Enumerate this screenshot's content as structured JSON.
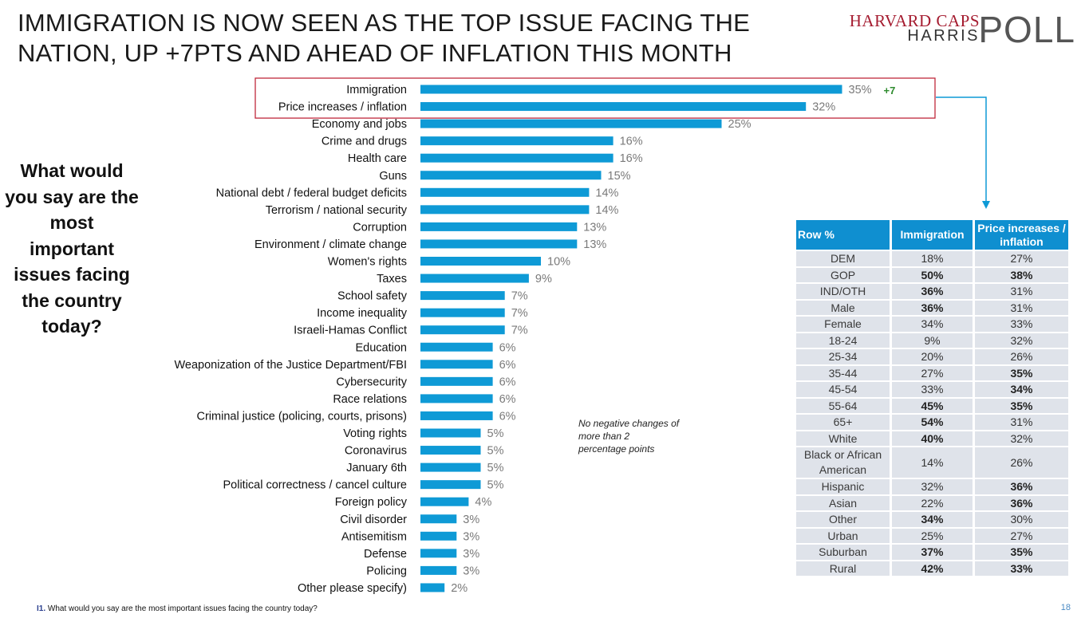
{
  "title_lines": [
    "IMMIGRATION IS NOW SEEN AS THE TOP ISSUE FACING THE",
    "NATION, UP +7PTS AND AHEAD OF INFLATION THIS MONTH"
  ],
  "logo": {
    "line1": "HARVARD CAPS",
    "line2": "HARRIS",
    "line3": "POLL",
    "line1_color": "#a51c30"
  },
  "question_lines": [
    "What would",
    "you say are the",
    "most",
    "important",
    "issues facing",
    "the country",
    "today?"
  ],
  "note_lines": [
    "No negative changes of",
    "more than 2",
    "percentage points"
  ],
  "footnote": {
    "id": "I1.",
    "text": " What would you say are the most important issues facing the country today?"
  },
  "page_number": "18",
  "colors": {
    "bar": "#0e9ad6",
    "highlight_box": "#c0283c",
    "change_text": "#2e8b2e",
    "header_bg": "#0f8fd0",
    "cell_bg": "#dfe3ea",
    "arrow": "#0e9ad6"
  },
  "chart_data": {
    "type": "bar",
    "orientation": "horizontal",
    "value_suffix": "%",
    "categories": [
      "Immigration",
      "Price increases / inflation",
      "Economy and jobs",
      "Crime and drugs",
      "Health care",
      "Guns",
      "National debt / federal budget deficits",
      "Terrorism / national security",
      "Corruption",
      "Environment / climate change",
      "Women's rights",
      "Taxes",
      "School safety",
      "Income inequality",
      "Israeli-Hamas Conflict",
      "Education",
      "Weaponization of the Justice Department/FBI",
      "Cybersecurity",
      "Race relations",
      "Criminal justice (policing, courts, prisons)",
      "Voting rights",
      "Coronavirus",
      "January 6th",
      "Political correctness / cancel culture",
      "Foreign policy",
      "Civil disorder",
      "Antisemitism",
      "Defense",
      "Policing",
      "Other please specify)"
    ],
    "values": [
      35,
      32,
      25,
      16,
      16,
      15,
      14,
      14,
      13,
      13,
      10,
      9,
      7,
      7,
      7,
      6,
      6,
      6,
      6,
      6,
      5,
      5,
      5,
      5,
      4,
      3,
      3,
      3,
      3,
      2
    ],
    "annotations": [
      {
        "category": "Immigration",
        "text": "+7"
      }
    ],
    "highlighted_categories": [
      "Immigration",
      "Price increases / inflation"
    ],
    "xlim": [
      0,
      35
    ]
  },
  "table": {
    "headers": [
      "Row %",
      "Immigration",
      "Price increases / inflation"
    ],
    "rows": [
      {
        "label": "DEM",
        "immigration": "18%",
        "inflation": "27%",
        "imm_bold": false,
        "inf_bold": false
      },
      {
        "label": "GOP",
        "immigration": "50%",
        "inflation": "38%",
        "imm_bold": true,
        "inf_bold": true
      },
      {
        "label": "IND/OTH",
        "immigration": "36%",
        "inflation": "31%",
        "imm_bold": true,
        "inf_bold": false
      },
      {
        "label": "Male",
        "immigration": "36%",
        "inflation": "31%",
        "imm_bold": true,
        "inf_bold": false
      },
      {
        "label": "Female",
        "immigration": "34%",
        "inflation": "33%",
        "imm_bold": false,
        "inf_bold": false
      },
      {
        "label": "18-24",
        "immigration": "9%",
        "inflation": "32%",
        "imm_bold": false,
        "inf_bold": false
      },
      {
        "label": "25-34",
        "immigration": "20%",
        "inflation": "26%",
        "imm_bold": false,
        "inf_bold": false
      },
      {
        "label": "35-44",
        "immigration": "27%",
        "inflation": "35%",
        "imm_bold": false,
        "inf_bold": true
      },
      {
        "label": "45-54",
        "immigration": "33%",
        "inflation": "34%",
        "imm_bold": false,
        "inf_bold": true
      },
      {
        "label": "55-64",
        "immigration": "45%",
        "inflation": "35%",
        "imm_bold": true,
        "inf_bold": true
      },
      {
        "label": "65+",
        "immigration": "54%",
        "inflation": "31%",
        "imm_bold": true,
        "inf_bold": false
      },
      {
        "label": "White",
        "immigration": "40%",
        "inflation": "32%",
        "imm_bold": true,
        "inf_bold": false
      },
      {
        "label": "Black or African American",
        "immigration": "14%",
        "inflation": "26%",
        "imm_bold": false,
        "inf_bold": false
      },
      {
        "label": "Hispanic",
        "immigration": "32%",
        "inflation": "36%",
        "imm_bold": false,
        "inf_bold": true
      },
      {
        "label": "Asian",
        "immigration": "22%",
        "inflation": "36%",
        "imm_bold": false,
        "inf_bold": true
      },
      {
        "label": "Other",
        "immigration": "34%",
        "inflation": "30%",
        "imm_bold": true,
        "inf_bold": false
      },
      {
        "label": "Urban",
        "immigration": "25%",
        "inflation": "27%",
        "imm_bold": false,
        "inf_bold": false
      },
      {
        "label": "Suburban",
        "immigration": "37%",
        "inflation": "35%",
        "imm_bold": true,
        "inf_bold": true
      },
      {
        "label": "Rural",
        "immigration": "42%",
        "inflation": "33%",
        "imm_bold": true,
        "inf_bold": true
      }
    ]
  }
}
